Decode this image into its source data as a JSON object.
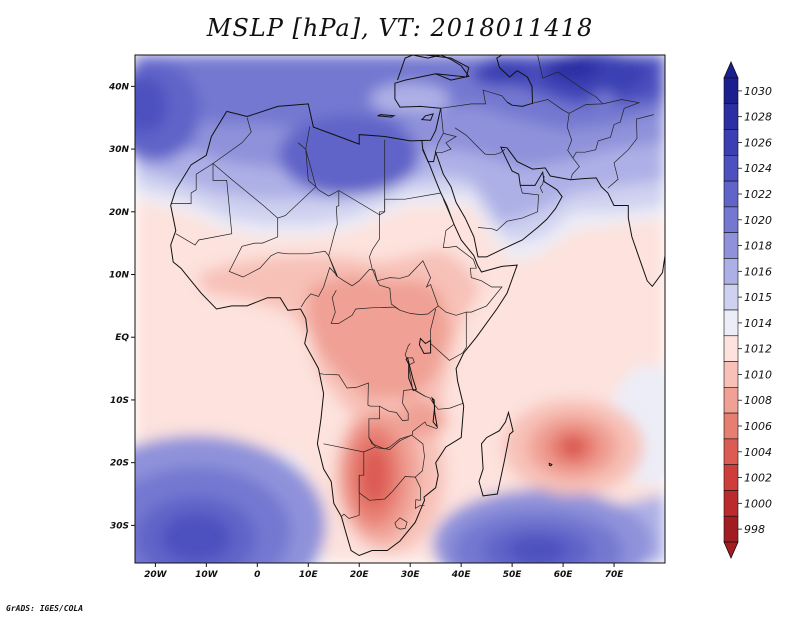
{
  "title": "MSLP [hPa], VT: 2018011418",
  "credit": "GrADS: IGES/COLA",
  "map": {
    "lon_range": [
      -24,
      80
    ],
    "lat_range": [
      -36,
      45
    ],
    "lon_ticks": [
      {
        "value": -20,
        "label": "20W"
      },
      {
        "value": -10,
        "label": "10W"
      },
      {
        "value": 0,
        "label": "0"
      },
      {
        "value": 10,
        "label": "10E"
      },
      {
        "value": 20,
        "label": "20E"
      },
      {
        "value": 30,
        "label": "30E"
      },
      {
        "value": 40,
        "label": "40E"
      },
      {
        "value": 50,
        "label": "50E"
      },
      {
        "value": 60,
        "label": "60E"
      },
      {
        "value": 70,
        "label": "70E"
      }
    ],
    "lat_ticks": [
      {
        "value": 40,
        "label": "40N"
      },
      {
        "value": 30,
        "label": "30N"
      },
      {
        "value": 20,
        "label": "20N"
      },
      {
        "value": 10,
        "label": "10N"
      },
      {
        "value": 0,
        "label": "EQ"
      },
      {
        "value": -10,
        "label": "10S"
      },
      {
        "value": -20,
        "label": "20S"
      },
      {
        "value": -30,
        "label": "30S"
      }
    ]
  },
  "colorbar": {
    "levels": [
      "1030",
      "1028",
      "1026",
      "1024",
      "1022",
      "1020",
      "1018",
      "1016",
      "1015",
      "1014",
      "1012",
      "1010",
      "1008",
      "1006",
      "1004",
      "1002",
      "1000",
      "998"
    ],
    "colors": [
      "#1c1f8e",
      "#2b2fa3",
      "#3b3fb3",
      "#4d51bf",
      "#6064c8",
      "#7478d0",
      "#8f92da",
      "#adb0e6",
      "#cfd1f0",
      "#ecedf7",
      "#fde2dd",
      "#f7c1b8",
      "#f0a094",
      "#e77e72",
      "#dc5c54",
      "#cf3d3b",
      "#bb2a2c",
      "#a21d22"
    ]
  },
  "features": {
    "low_pressure_center": {
      "lon": 62,
      "lat": -17.5,
      "value": 1003
    },
    "high_pressure_centers": [
      {
        "lon": -12,
        "lat": -31,
        "value": 1025
      },
      {
        "lon": 55,
        "lat": -33,
        "value": 1024
      },
      {
        "lon": 62,
        "lat": 43,
        "value": 1029
      },
      {
        "lon": 18,
        "lat": 29,
        "value": 1022
      }
    ]
  }
}
